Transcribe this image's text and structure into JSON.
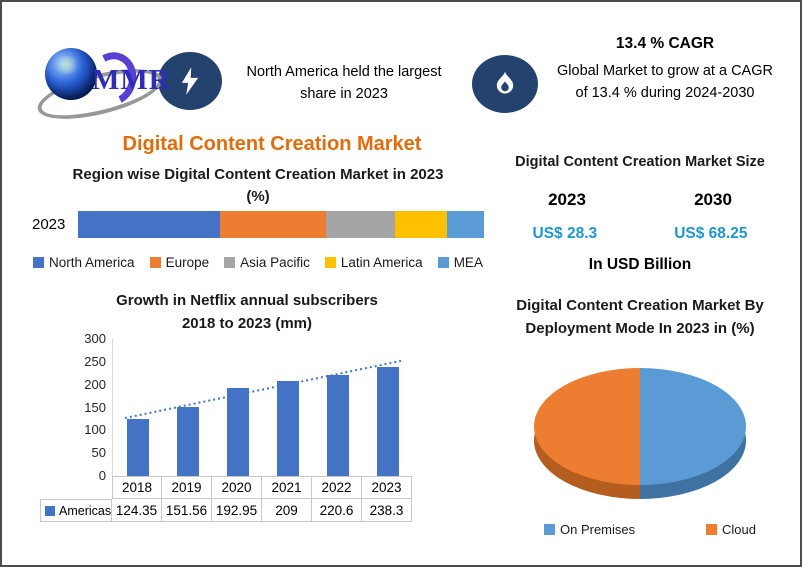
{
  "header": {
    "logo_text": "MMR",
    "note_line1": "North America held the largest",
    "note_line2": "share in 2023",
    "cagr_title": "13.4 % CAGR",
    "cagr_line1": "Global Market to grow at a CAGR",
    "cagr_line2": "of 13.4 % during 2024-2030",
    "badge_color": "#24426e"
  },
  "main_title": {
    "text": "Digital Content Creation Market",
    "color": "#E36C0A"
  },
  "market_size": {
    "title": "Digital Content Creation Market Size",
    "year_left": "2023",
    "year_right": "2030",
    "value_left": "US$ 28.3",
    "value_right": "US$ 68.25",
    "unit": "In USD Billion",
    "value_color": "#1E96D2"
  },
  "chart_data": [
    {
      "id": "region-stacked-bar",
      "type": "bar",
      "orientation": "horizontal-stacked",
      "title_line1": "Region wise Digital Content Creation  Market in 2023",
      "title_line2": "(%)",
      "categories": [
        "2023"
      ],
      "series": [
        {
          "name": "North America",
          "values": [
            35
          ],
          "color": "#4472C4"
        },
        {
          "name": "Europe",
          "values": [
            26
          ],
          "color": "#ED7D31"
        },
        {
          "name": "Asia Pacific",
          "values": [
            17
          ],
          "color": "#A5A5A5"
        },
        {
          "name": "Latin America",
          "values": [
            13
          ],
          "color": "#FFC000"
        },
        {
          "name": "MEA",
          "values": [
            9
          ],
          "color": "#5B9BD5"
        }
      ],
      "legend_position": "bottom",
      "note": "values are percent shares estimated from segment widths"
    },
    {
      "id": "netflix-subscribers",
      "type": "bar",
      "title_line1": "Growth in Netflix annual subscribers",
      "title_line2": "2018 to 2023 (mm)",
      "categories": [
        "2018",
        "2019",
        "2020",
        "2021",
        "2022",
        "2023"
      ],
      "series": [
        {
          "name": "Americas",
          "values": [
            124.35,
            151.56,
            192.95,
            209,
            220.6,
            238.3
          ],
          "color": "#4472C4"
        }
      ],
      "ylim": [
        0,
        300
      ],
      "yticks": [
        0,
        50,
        100,
        150,
        200,
        250,
        300
      ],
      "trendline": true,
      "trendline_color": "#4472C4",
      "data_table": true,
      "legend_position": "table-left"
    },
    {
      "id": "deployment-pie",
      "type": "pie",
      "title_line1": "Digital Content Creation  Market By",
      "title_line2": "Deployment Mode In 2023 in (%)",
      "slices": [
        {
          "name": "On Premises",
          "value": 50,
          "color": "#5B9BD5",
          "color_dark": "#3f72a0"
        },
        {
          "name": "Cloud",
          "value": 50,
          "color": "#ED7D31",
          "color_dark": "#b55d1e"
        }
      ],
      "legend_position": "bottom",
      "style": "3d"
    }
  ]
}
